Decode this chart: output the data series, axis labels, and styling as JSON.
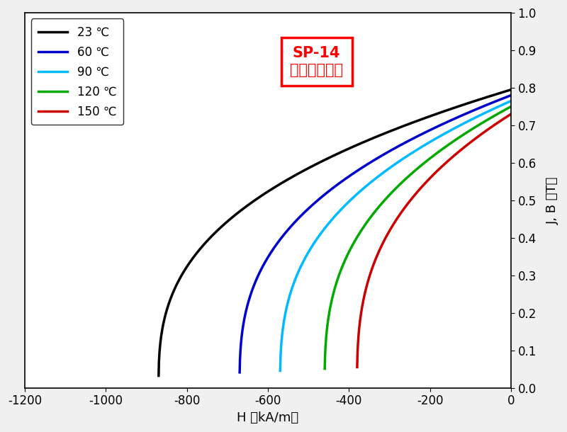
{
  "title_line1": "SP-14",
  "title_line2": "（標準仕様）",
  "xlabel": "H （kA/m）",
  "ylabel": "J, B （T）",
  "xlim": [
    -1200,
    0
  ],
  "ylim": [
    0.0,
    1.0
  ],
  "xticks": [
    -1200,
    -1000,
    -800,
    -600,
    -400,
    -200,
    0
  ],
  "yticks": [
    0.0,
    0.1,
    0.2,
    0.3,
    0.4,
    0.5,
    0.6,
    0.7,
    0.8,
    0.9,
    1.0
  ],
  "curves": [
    {
      "label": "23 ℃",
      "color": "#000000",
      "Br": 0.795,
      "Hc_zero": -870,
      "n": 2.8
    },
    {
      "label": "60 ℃",
      "color": "#0000cc",
      "Br": 0.78,
      "Hc_zero": -670,
      "n": 2.8
    },
    {
      "label": "90 ℃",
      "color": "#00bbff",
      "Br": 0.765,
      "Hc_zero": -570,
      "n": 2.8
    },
    {
      "label": "120 ℃",
      "color": "#00aa00",
      "Br": 0.75,
      "Hc_zero": -460,
      "n": 2.8
    },
    {
      "label": "150 ℃",
      "color": "#cc0000",
      "Br": 0.73,
      "Hc_zero": -380,
      "n": 2.8
    }
  ],
  "background_color": "#f0f0f0",
  "plot_bg_color": "#ffffff",
  "linewidth": 2.5,
  "legend_fontsize": 12,
  "axis_fontsize": 13,
  "tick_fontsize": 12,
  "title_fontsize": 15
}
